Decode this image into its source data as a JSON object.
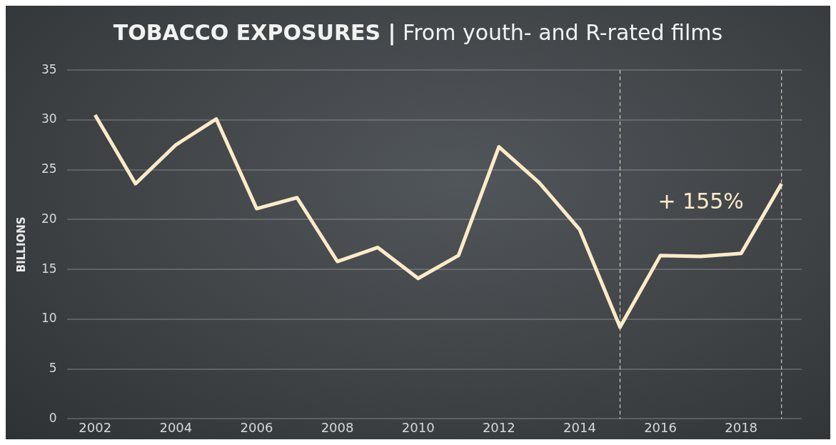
{
  "chart_data": {
    "type": "line",
    "title": "TOBACCO EXPOSURES | From youth- and R-rated films",
    "ylabel": "BILLIONS",
    "x": [
      2002,
      2003,
      2004,
      2005,
      2006,
      2007,
      2008,
      2009,
      2010,
      2011,
      2012,
      2013,
      2014,
      2015,
      2016,
      2017,
      2018,
      2019
    ],
    "series": [
      {
        "color": "#fdebc8",
        "values": [
          30.5,
          23.6,
          27.5,
          30.1,
          21.1,
          22.2,
          15.8,
          17.2,
          14.1,
          16.4,
          27.3,
          23.7,
          19.0,
          9.2,
          16.4,
          16.3,
          16.6,
          23.6
        ]
      }
    ],
    "xlim": [
      2001.3,
      2019.5
    ],
    "xticks": [
      2002,
      2004,
      2006,
      2008,
      2010,
      2012,
      2014,
      2016,
      2018
    ],
    "ylim": [
      0,
      35
    ],
    "yticks": [
      0,
      5,
      10,
      15,
      20,
      25,
      30,
      35
    ],
    "grid": "y",
    "legend": false,
    "marker": "none",
    "line_style": "solid",
    "ref_lines": [
      {
        "axis": "x",
        "value": 2015,
        "color": "#f0ead8",
        "line_style": "dashed"
      },
      {
        "axis": "x",
        "value": 2019,
        "color": "#f0ead8",
        "line_style": "dashed"
      }
    ],
    "annotations": [
      "+ 155%"
    ]
  }
}
